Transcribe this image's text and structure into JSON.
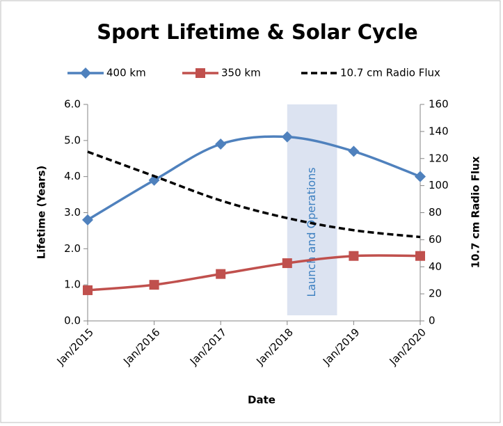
{
  "chart_data": {
    "type": "line",
    "title": "Sport Lifetime & Solar Cycle",
    "x_label": "Date",
    "y_label": "Lifetime (Years)",
    "y2_label": "10.7 cm Radio Flux",
    "categories": [
      "Jan/2015",
      "Jan/2016",
      "Jan/2017",
      "Jan/2018",
      "Jan/2019",
      "Jan/2020"
    ],
    "series": [
      {
        "name": "400 km",
        "color": "#4f81bd",
        "marker": "diamond",
        "values": [
          2.8,
          3.9,
          4.9,
          5.1,
          4.7,
          4.0
        ]
      },
      {
        "name": "350 km",
        "color": "#c0504d",
        "marker": "square",
        "values": [
          0.85,
          1.0,
          1.3,
          1.6,
          1.8,
          1.8
        ]
      },
      {
        "name": "10.7 cm Radio Flux",
        "color": "#000000",
        "dashed": true,
        "axis": "y2",
        "values": [
          125,
          107,
          89,
          76,
          67,
          62
        ]
      }
    ],
    "span": {
      "label": "Launch and Operations",
      "start": 3,
      "end": 3.75,
      "color": "#dce3f1"
    },
    "ylim": [
      0,
      6
    ],
    "yticks": [
      {
        "value": 0,
        "label": "0.0"
      },
      {
        "value": 1,
        "label": "1.0"
      },
      {
        "value": 2,
        "label": "2.0"
      },
      {
        "value": 3,
        "label": "3.0"
      },
      {
        "value": 4,
        "label": "4.0"
      },
      {
        "value": 5,
        "label": "5.0"
      },
      {
        "value": 6,
        "label": "6.0"
      }
    ],
    "y2lim": [
      0,
      160
    ],
    "y2ticks": [
      0,
      20,
      40,
      60,
      80,
      100,
      120,
      140,
      160
    ],
    "legend": "top",
    "grid": false
  }
}
